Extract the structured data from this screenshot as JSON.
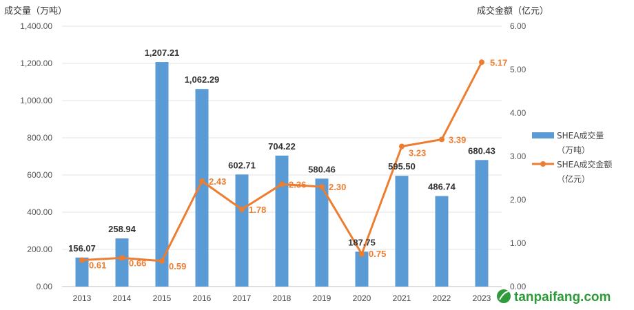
{
  "chart_data": {
    "type": "bar",
    "categories": [
      "2013",
      "2014",
      "2015",
      "2016",
      "2017",
      "2018",
      "2019",
      "2020",
      "2021",
      "2022",
      "2023"
    ],
    "series": [
      {
        "name": "SHEA成交量",
        "name_line2": "（万吨）",
        "type": "bar",
        "axis": "left",
        "values": [
          156.07,
          258.94,
          1207.21,
          1062.29,
          602.71,
          704.22,
          580.46,
          187.75,
          595.5,
          486.74,
          680.43
        ],
        "labels": [
          "156.07",
          "258.94",
          "1,207.21",
          "1,062.29",
          "602.71",
          "704.22",
          "580.46",
          "187.75",
          "595.50",
          "486.74",
          "680.43"
        ],
        "color": "#5B9BD5"
      },
      {
        "name": "SHEA成交金额",
        "name_line2": "（亿元）",
        "type": "line",
        "axis": "right",
        "values": [
          0.61,
          0.66,
          0.59,
          2.43,
          1.78,
          2.36,
          2.3,
          0.75,
          3.23,
          3.39,
          5.17
        ],
        "labels": [
          "0.61",
          "0.66",
          "0.59",
          "2.43",
          "1.78",
          "2.36",
          "2.30",
          "0.75",
          "3.23",
          "3.39",
          "5.17"
        ],
        "color": "#ED7D31"
      }
    ],
    "ylabel": "成交量（万吨）",
    "y2label": "成交金额（亿元）",
    "ylim": [
      0,
      1400
    ],
    "y2lim": [
      0,
      6
    ],
    "yticks": [
      "0.00",
      "200.00",
      "400.00",
      "600.00",
      "800.00",
      "1,000.00",
      "1,200.00",
      "1,400.00"
    ],
    "y2ticks": [
      "0.00",
      "1.00",
      "2.00",
      "3.00",
      "4.00",
      "5.00",
      "6.00"
    ],
    "grid": true,
    "legend": "right"
  },
  "watermark": {
    "text": "tanpaifang.com",
    "icon": "leaf-icon",
    "color": "#2e9a3a"
  }
}
